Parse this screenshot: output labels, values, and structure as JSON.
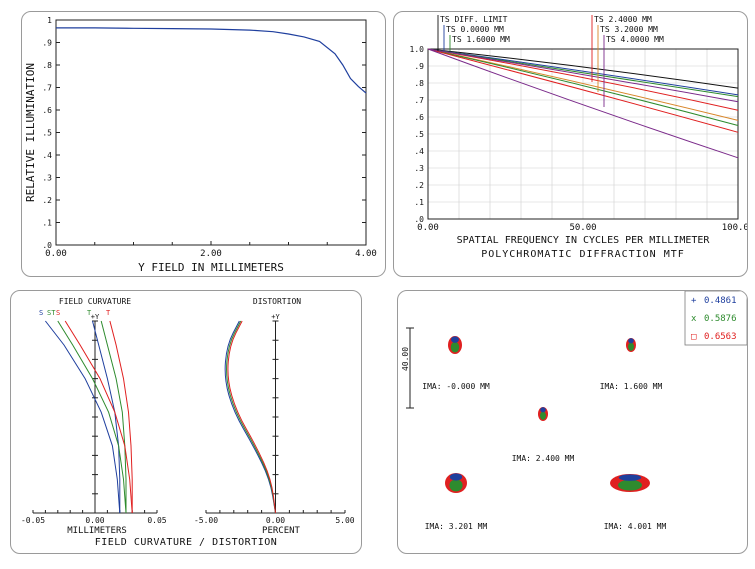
{
  "colors": {
    "blue": "#1f3f9e",
    "green": "#2e8b2e",
    "red": "#e02020",
    "black": "#111111",
    "purple": "#7a2a8a",
    "orange": "#d8862a",
    "frame": "#222222",
    "gray": "#9a9a9a"
  },
  "charts": [
    {
      "type": "line",
      "title": "",
      "xlabel": "Y FIELD IN MILLIMETERS",
      "ylabel": "RELATIVE ILLUMINATION",
      "xlim": [
        0,
        4
      ],
      "ylim": [
        0,
        1
      ],
      "x_ticks": [
        "0.00",
        "2.00",
        "4.00"
      ],
      "y_ticks": [
        ".0",
        ".1",
        ".2",
        ".3",
        ".4",
        ".5",
        ".6",
        ".7",
        ".8",
        ".9",
        "1"
      ],
      "grid": false,
      "series": [
        {
          "x": [
            0,
            0.5,
            1.0,
            1.5,
            2.0,
            2.5,
            2.8,
            3.0,
            3.2,
            3.4,
            3.6,
            3.7,
            3.8,
            3.9,
            4.0
          ],
          "y": [
            0.965,
            0.965,
            0.963,
            0.962,
            0.96,
            0.955,
            0.948,
            0.938,
            0.925,
            0.905,
            0.85,
            0.8,
            0.74,
            0.705,
            0.675
          ]
        }
      ]
    },
    {
      "type": "line",
      "title": "POLYCHROMATIC DIFFRACTION MTF",
      "xlabel": "SPATIAL FREQUENCY IN CYCLES PER MILLIMETER",
      "ylabel": "",
      "xlim": [
        0,
        100
      ],
      "ylim": [
        0,
        1
      ],
      "x_ticks": [
        "0.00",
        "50.00",
        "100.00"
      ],
      "y_ticks": [
        ".0",
        ".1",
        ".2",
        ".3",
        ".4",
        ".5",
        ".6",
        ".7",
        ".8",
        ".9",
        "1.0"
      ],
      "grid": true,
      "legend_labels": [
        "TS DIFF. LIMIT",
        "TS 0.0000 MM",
        "TS 1.6000 MM",
        "TS 2.4000 MM",
        "TS 3.2000 MM",
        "TS 4.0000 MM"
      ],
      "series": [
        {
          "name": "TS DIFF. LIMIT",
          "x": [
            0,
            50,
            100
          ],
          "y": [
            1.0,
            0.88,
            0.77
          ]
        },
        {
          "name": "TS 0.0000 MM",
          "x": [
            0,
            50,
            100
          ],
          "y": [
            1.0,
            0.85,
            0.73
          ]
        },
        {
          "name": "TS 1.6000 MM",
          "x": [
            0,
            50,
            100
          ],
          "y": [
            1.0,
            0.84,
            0.72
          ]
        },
        {
          "name": "TS 2.4000 MM",
          "x": [
            0,
            50,
            100
          ],
          "y": [
            1.0,
            0.82,
            0.64
          ]
        },
        {
          "name": "TS 2.4000 MM S",
          "x": [
            0,
            50,
            100
          ],
          "y": [
            1.0,
            0.78,
            0.58
          ]
        },
        {
          "name": "TS 3.2000 MM",
          "x": [
            0,
            50,
            100
          ],
          "y": [
            1.0,
            0.77,
            0.55
          ]
        },
        {
          "name": "TS 3.2000 MM S",
          "x": [
            0,
            50,
            100
          ],
          "y": [
            1.0,
            0.74,
            0.51
          ]
        },
        {
          "name": "TS 4.0000 MM",
          "x": [
            0,
            50,
            100
          ],
          "y": [
            1.0,
            0.83,
            0.69
          ]
        },
        {
          "name": "TS 4.0000 MM S",
          "x": [
            0,
            50,
            100
          ],
          "y": [
            1.0,
            0.64,
            0.36
          ]
        }
      ]
    },
    {
      "type": "line",
      "title": "FIELD CURVATURE",
      "xlabel": "MILLIMETERS",
      "xlim": [
        -0.05,
        0.05
      ],
      "ylim": [
        0,
        4
      ],
      "x_ticks": [
        "-0.05",
        "0.00",
        "0.05"
      ],
      "axis_marker": "+Y",
      "legend_letters": [
        "S",
        "ST",
        "S",
        "T",
        "T"
      ],
      "series": [
        {
          "name": "S blue",
          "x": [
            0.02,
            0.018,
            0.014,
            0.005,
            -0.008,
            -0.025,
            -0.04
          ],
          "y": [
            0,
            0.7,
            1.4,
            2.1,
            2.8,
            3.5,
            4
          ]
        },
        {
          "name": "T blue",
          "x": [
            0.02,
            0.02,
            0.019,
            0.016,
            0.01,
            0.003,
            -0.002
          ],
          "y": [
            0,
            0.7,
            1.4,
            2.1,
            2.8,
            3.5,
            4
          ]
        },
        {
          "name": "S green",
          "x": [
            0.025,
            0.023,
            0.019,
            0.011,
            -0.002,
            -0.018,
            -0.03
          ],
          "y": [
            0,
            0.7,
            1.4,
            2.1,
            2.8,
            3.5,
            4
          ]
        },
        {
          "name": "T green",
          "x": [
            0.025,
            0.025,
            0.024,
            0.022,
            0.017,
            0.01,
            0.005
          ],
          "y": [
            0,
            0.7,
            1.4,
            2.1,
            2.8,
            3.5,
            4
          ]
        },
        {
          "name": "S red",
          "x": [
            0.03,
            0.028,
            0.024,
            0.016,
            0.004,
            -0.012,
            -0.024
          ],
          "y": [
            0,
            0.7,
            1.4,
            2.1,
            2.8,
            3.5,
            4
          ]
        },
        {
          "name": "T red",
          "x": [
            0.03,
            0.03,
            0.029,
            0.027,
            0.023,
            0.017,
            0.012
          ],
          "y": [
            0,
            0.7,
            1.4,
            2.1,
            2.8,
            3.5,
            4
          ]
        }
      ]
    },
    {
      "type": "line",
      "title": "DISTORTION",
      "xlabel": "PERCENT",
      "xlim": [
        -5,
        5
      ],
      "ylim": [
        0,
        4
      ],
      "x_ticks": [
        "-5.00",
        "0.00",
        "5.00"
      ],
      "axis_marker": "+Y",
      "bottom_label": "FIELD CURVATURE / DISTORTION",
      "series": [
        {
          "name": "blue",
          "x": [
            0,
            -0.4,
            -1.6,
            -3.0,
            -3.7,
            -3.5,
            -2.6
          ],
          "y": [
            0,
            0.7,
            1.4,
            2.1,
            2.8,
            3.5,
            4
          ]
        },
        {
          "name": "green",
          "x": [
            0,
            -0.35,
            -1.5,
            -2.9,
            -3.6,
            -3.4,
            -2.5
          ],
          "y": [
            0,
            0.7,
            1.4,
            2.1,
            2.8,
            3.5,
            4
          ]
        },
        {
          "name": "red",
          "x": [
            0,
            -0.3,
            -1.4,
            -2.8,
            -3.5,
            -3.3,
            -2.4
          ],
          "y": [
            0,
            0.7,
            1.4,
            2.1,
            2.8,
            3.5,
            4
          ]
        }
      ]
    },
    {
      "type": "scatter",
      "title": "",
      "scale_label": "40.00",
      "legend": [
        {
          "symbol": "+",
          "value": "0.4861",
          "color": "#1f3f9e"
        },
        {
          "symbol": "x",
          "value": "0.5876",
          "color": "#2e8b2e"
        },
        {
          "symbol": "□",
          "value": "0.6563",
          "color": "#e02020"
        }
      ],
      "spots": [
        {
          "label": "IMA: -0.000 MM"
        },
        {
          "label": "IMA: 1.600 MM"
        },
        {
          "label": "IMA: 2.400 MM"
        },
        {
          "label": "IMA: 3.201 MM"
        },
        {
          "label": "IMA: 4.001 MM"
        }
      ]
    }
  ]
}
